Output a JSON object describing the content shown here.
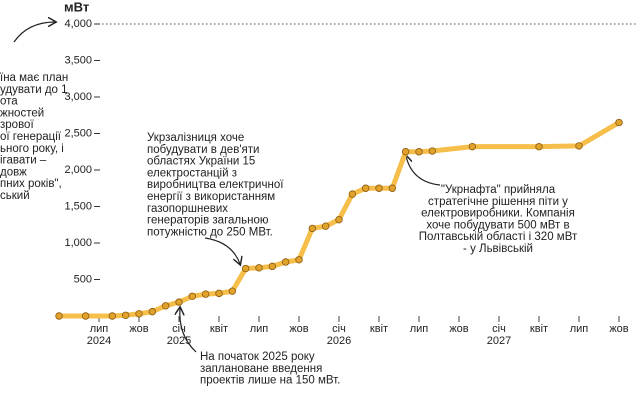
{
  "chart_data": {
    "type": "line",
    "y_unit": "мВт",
    "x": [
      "2024-04",
      "2024-06",
      "2024-08",
      "2024-09",
      "2024-10",
      "2024-11",
      "2024-12",
      "2025-01",
      "2025-02",
      "2025-03",
      "2025-04",
      "2025-05",
      "2025-06",
      "2025-07",
      "2025-08",
      "2025-09",
      "2025-10",
      "2025-11",
      "2025-12",
      "2026-01",
      "2026-02",
      "2026-03",
      "2026-04",
      "2026-05",
      "2026-06",
      "2026-07",
      "2026-08",
      "2026-11",
      "2027-04",
      "2027-07",
      "2027-10"
    ],
    "values": [
      0,
      0,
      0,
      10,
      30,
      60,
      140,
      190,
      270,
      300,
      310,
      340,
      650,
      660,
      680,
      740,
      770,
      1200,
      1230,
      1320,
      1670,
      1750,
      1750,
      1750,
      2250,
      2250,
      2260,
      2320,
      2320,
      2330,
      2650
    ],
    "color": "#f6be4a",
    "marker_color": "#e0a22a",
    "xlim": [
      "2024-04",
      "2027-10"
    ],
    "ylim": [
      0,
      4000
    ],
    "yticks": [
      {
        "value": 500,
        "label": "500"
      },
      {
        "value": 1000,
        "label": "1,000"
      },
      {
        "value": 1500,
        "label": "1,500"
      },
      {
        "value": 2000,
        "label": "2,000"
      },
      {
        "value": 2500,
        "label": "2,500"
      },
      {
        "value": 3000,
        "label": "3,000"
      },
      {
        "value": 3500,
        "label": "3,500"
      },
      {
        "value": 4000,
        "label": "4,000"
      }
    ],
    "xticks": [
      {
        "value": "2024-07",
        "label": "лип"
      },
      {
        "value": "2024-10",
        "label": "жов"
      },
      {
        "value": "2025-01",
        "label": "січ"
      },
      {
        "value": "2025-04",
        "label": "квіт"
      },
      {
        "value": "2025-07",
        "label": "лип"
      },
      {
        "value": "2025-10",
        "label": "жов"
      },
      {
        "value": "2026-01",
        "label": "січ"
      },
      {
        "value": "2026-04",
        "label": "квіт"
      },
      {
        "value": "2026-07",
        "label": "лип"
      },
      {
        "value": "2026-10",
        "label": "жов"
      },
      {
        "value": "2027-01",
        "label": "січ"
      },
      {
        "value": "2027-04",
        "label": "квіт"
      },
      {
        "value": "2027-07",
        "label": "лип"
      },
      {
        "value": "2027-10",
        "label": "жов"
      }
    ],
    "xyears": [
      {
        "value": "2024-07",
        "label": "2024"
      },
      {
        "value": "2025-01",
        "label": "2025"
      },
      {
        "value": "2026-01",
        "label": "2026"
      },
      {
        "value": "2027-01",
        "label": "2027"
      }
    ],
    "reference_line": 4000,
    "annotations": [
      {
        "lines": [
          "їна має план",
          "удувати до 1",
          "ота",
          "жностей",
          "зрової",
          "ої генерації",
          "ьного року, і",
          "ігавати –",
          "довж",
          "пних років\",",
          "ський"
        ]
      },
      {
        "lines": [
          "Укрзалізниця хоче",
          "побудувати в дев'яти",
          "областях України 15",
          "електростанцій з",
          "виробництва електричної",
          "енергії з використанням",
          "газопоршневих",
          "генераторів загальною",
          "потужністю до 250 МВт."
        ]
      },
      {
        "lines": [
          "\"Укрнафта\" прийняла",
          "стратегічне рішення піти у",
          "електровиробники. Компанія",
          "хоче побудувати 500 мВт в",
          "Полтавській області і 320 мВт",
          "- у Львівській"
        ]
      },
      {
        "lines": [
          "На початок 2025 року",
          "заплановане введення",
          "проектів лише на 150 мВт."
        ]
      }
    ]
  }
}
